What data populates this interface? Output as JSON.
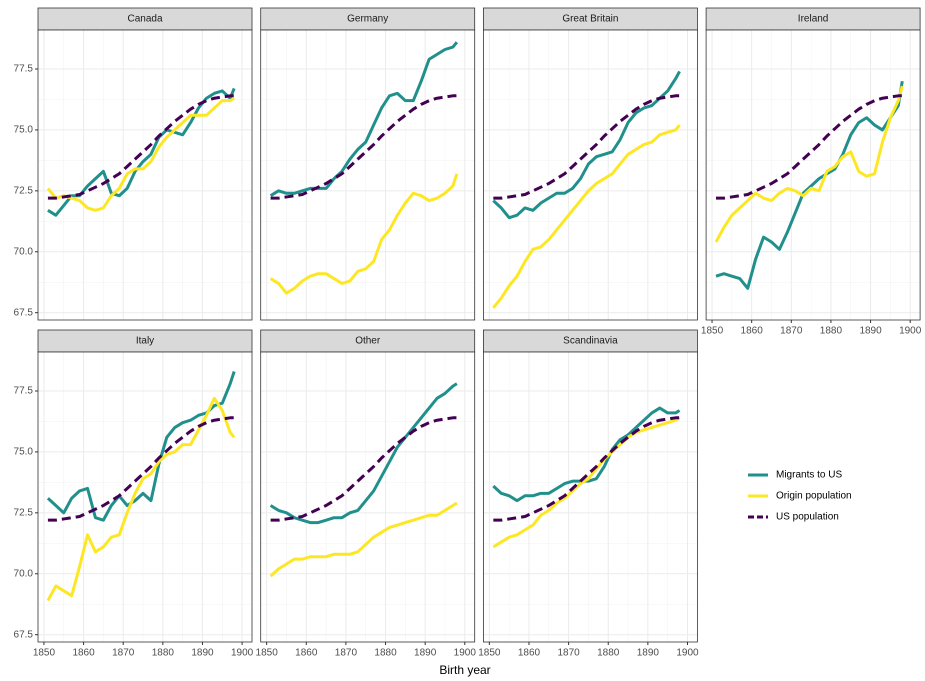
{
  "chart_data": [
    {
      "type": "line",
      "title": "Canada",
      "xlabel": "Birth year",
      "x": [
        1851,
        1853,
        1855,
        1857,
        1859,
        1861,
        1863,
        1865,
        1867,
        1869,
        1871,
        1873,
        1875,
        1877,
        1879,
        1881,
        1883,
        1885,
        1887,
        1889,
        1891,
        1893,
        1895,
        1897,
        1898
      ],
      "xlim": [
        1848.5,
        1902.5
      ],
      "xticks": [
        1850,
        1860,
        1870,
        1880,
        1890,
        1900
      ],
      "ylim": [
        67.2,
        79.1
      ],
      "yticks": [
        67.5,
        {
          "value": 70,
          "label": "70.0"
        },
        72.5,
        {
          "value": 75,
          "label": "75.0"
        },
        77.5
      ],
      "grid": true,
      "series": [
        {
          "name": "Migrants to US",
          "color": "#21908c",
          "dash": false,
          "values": [
            71.7,
            71.5,
            71.9,
            72.3,
            72.3,
            72.7,
            73.0,
            73.3,
            72.4,
            72.3,
            72.6,
            73.3,
            73.7,
            74.0,
            74.7,
            75.0,
            74.9,
            74.8,
            75.3,
            75.9,
            76.3,
            76.5,
            76.6,
            76.3,
            76.7
          ]
        },
        {
          "name": "Origin population",
          "color": "#fde725",
          "dash": false,
          "values": [
            72.6,
            72.2,
            72.3,
            72.2,
            72.1,
            71.8,
            71.7,
            71.8,
            72.3,
            72.6,
            73.2,
            73.4,
            73.4,
            73.7,
            74.3,
            74.7,
            75.0,
            75.3,
            75.6,
            75.6,
            75.6,
            75.9,
            76.2,
            76.2,
            76.3
          ]
        },
        {
          "name": "US population",
          "color": "#440154",
          "dash": true,
          "values": [
            72.2,
            72.2,
            72.25,
            72.3,
            72.35,
            72.5,
            72.65,
            72.8,
            73.0,
            73.2,
            73.5,
            73.8,
            74.1,
            74.4,
            74.75,
            75.05,
            75.35,
            75.6,
            75.85,
            76.05,
            76.2,
            76.3,
            76.35,
            76.4,
            76.4
          ]
        }
      ]
    },
    {
      "type": "line",
      "title": "Germany",
      "x": [
        1851,
        1853,
        1855,
        1857,
        1859,
        1861,
        1863,
        1865,
        1867,
        1869,
        1871,
        1873,
        1875,
        1877,
        1879,
        1881,
        1883,
        1885,
        1887,
        1889,
        1891,
        1893,
        1895,
        1897,
        1898
      ],
      "xlim": [
        1848.5,
        1902.5
      ],
      "xticks": [
        1850,
        1860,
        1870,
        1880,
        1890,
        1900
      ],
      "ylim": [
        67.2,
        79.1
      ],
      "yticks": [
        67.5,
        {
          "value": 70,
          "label": "70.0"
        },
        72.5,
        {
          "value": 75,
          "label": "75.0"
        },
        77.5
      ],
      "grid": true,
      "series": [
        {
          "name": "Migrants to US",
          "color": "#21908c",
          "dash": false,
          "values": [
            72.3,
            72.5,
            72.4,
            72.4,
            72.5,
            72.6,
            72.6,
            72.6,
            73.0,
            73.3,
            73.8,
            74.2,
            74.5,
            75.2,
            75.9,
            76.4,
            76.5,
            76.2,
            76.2,
            77.0,
            77.9,
            78.1,
            78.3,
            78.4,
            78.6
          ]
        },
        {
          "name": "Origin population",
          "color": "#fde725",
          "dash": false,
          "values": [
            68.9,
            68.7,
            68.3,
            68.5,
            68.8,
            69.0,
            69.1,
            69.1,
            68.9,
            68.7,
            68.8,
            69.2,
            69.3,
            69.6,
            70.5,
            70.9,
            71.5,
            72.0,
            72.4,
            72.3,
            72.1,
            72.2,
            72.4,
            72.7,
            73.2
          ]
        },
        {
          "name": "US population",
          "color": "#440154",
          "dash": true,
          "values": [
            72.2,
            72.2,
            72.25,
            72.3,
            72.35,
            72.5,
            72.65,
            72.8,
            73.0,
            73.2,
            73.5,
            73.8,
            74.1,
            74.4,
            74.75,
            75.05,
            75.35,
            75.6,
            75.85,
            76.05,
            76.2,
            76.3,
            76.35,
            76.4,
            76.4
          ]
        }
      ]
    },
    {
      "type": "line",
      "title": "Great Britain",
      "x": [
        1851,
        1853,
        1855,
        1857,
        1859,
        1861,
        1863,
        1865,
        1867,
        1869,
        1871,
        1873,
        1875,
        1877,
        1879,
        1881,
        1883,
        1885,
        1887,
        1889,
        1891,
        1893,
        1895,
        1897,
        1898
      ],
      "xlim": [
        1848.5,
        1902.5
      ],
      "xticks": [
        1850,
        1860,
        1870,
        1880,
        1890,
        1900
      ],
      "ylim": [
        67.2,
        79.1
      ],
      "yticks": [
        67.5,
        {
          "value": 70,
          "label": "70.0"
        },
        72.5,
        {
          "value": 75,
          "label": "75.0"
        },
        77.5
      ],
      "grid": true,
      "series": [
        {
          "name": "Migrants to US",
          "color": "#21908c",
          "dash": false,
          "values": [
            72.1,
            71.8,
            71.4,
            71.5,
            71.8,
            71.7,
            72.0,
            72.2,
            72.4,
            72.4,
            72.6,
            73.0,
            73.6,
            73.9,
            74.0,
            74.1,
            74.6,
            75.3,
            75.7,
            75.9,
            76.0,
            76.3,
            76.6,
            77.1,
            77.4
          ]
        },
        {
          "name": "Origin population",
          "color": "#fde725",
          "dash": false,
          "values": [
            67.7,
            68.1,
            68.6,
            69.0,
            69.6,
            70.1,
            70.2,
            70.5,
            70.9,
            71.3,
            71.7,
            72.1,
            72.5,
            72.8,
            73.0,
            73.2,
            73.6,
            74.0,
            74.2,
            74.4,
            74.5,
            74.8,
            74.9,
            75.0,
            75.2
          ]
        },
        {
          "name": "US population",
          "color": "#440154",
          "dash": true,
          "values": [
            72.2,
            72.2,
            72.25,
            72.3,
            72.35,
            72.5,
            72.65,
            72.8,
            73.0,
            73.2,
            73.5,
            73.8,
            74.1,
            74.4,
            74.75,
            75.05,
            75.35,
            75.6,
            75.85,
            76.05,
            76.2,
            76.3,
            76.35,
            76.4,
            76.4
          ]
        }
      ]
    },
    {
      "type": "line",
      "title": "Ireland",
      "x": [
        1851,
        1853,
        1855,
        1857,
        1859,
        1861,
        1863,
        1865,
        1867,
        1869,
        1871,
        1873,
        1875,
        1877,
        1879,
        1881,
        1883,
        1885,
        1887,
        1889,
        1891,
        1893,
        1895,
        1897,
        1898
      ],
      "xlim": [
        1848.5,
        1902.5
      ],
      "xticks": [
        1850,
        1860,
        1870,
        1880,
        1890,
        1900
      ],
      "ylim": [
        67.2,
        79.1
      ],
      "yticks": [
        67.5,
        {
          "value": 70,
          "label": "70.0"
        },
        72.5,
        {
          "value": 75,
          "label": "75.0"
        },
        77.5
      ],
      "grid": true,
      "series": [
        {
          "name": "Migrants to US",
          "color": "#21908c",
          "dash": false,
          "values": [
            69.0,
            69.1,
            69.0,
            68.9,
            68.5,
            69.7,
            70.6,
            70.4,
            70.1,
            70.8,
            71.6,
            72.4,
            72.7,
            73.0,
            73.2,
            73.4,
            74.0,
            74.8,
            75.3,
            75.5,
            75.2,
            75.0,
            75.5,
            76.0,
            77.0
          ]
        },
        {
          "name": "Origin population",
          "color": "#fde725",
          "dash": false,
          "values": [
            70.4,
            71.0,
            71.5,
            71.8,
            72.1,
            72.4,
            72.2,
            72.1,
            72.4,
            72.6,
            72.5,
            72.3,
            72.6,
            72.5,
            73.3,
            73.5,
            73.9,
            74.1,
            73.3,
            73.1,
            73.2,
            74.5,
            75.5,
            76.2,
            76.8
          ]
        },
        {
          "name": "US population",
          "color": "#440154",
          "dash": true,
          "values": [
            72.2,
            72.2,
            72.25,
            72.3,
            72.35,
            72.5,
            72.65,
            72.8,
            73.0,
            73.2,
            73.5,
            73.8,
            74.1,
            74.4,
            74.75,
            75.05,
            75.35,
            75.6,
            75.85,
            76.05,
            76.2,
            76.3,
            76.35,
            76.4,
            76.4
          ]
        }
      ]
    },
    {
      "type": "line",
      "title": "Italy",
      "x": [
        1851,
        1853,
        1855,
        1857,
        1859,
        1861,
        1863,
        1865,
        1867,
        1869,
        1871,
        1873,
        1875,
        1877,
        1879,
        1881,
        1883,
        1885,
        1887,
        1889,
        1891,
        1893,
        1895,
        1897,
        1898
      ],
      "xlim": [
        1848.5,
        1902.5
      ],
      "xticks": [
        1850,
        1860,
        1870,
        1880,
        1890,
        1900
      ],
      "ylim": [
        67.2,
        79.1
      ],
      "yticks": [
        67.5,
        {
          "value": 70,
          "label": "70.0"
        },
        72.5,
        {
          "value": 75,
          "label": "75.0"
        },
        77.5
      ],
      "grid": true,
      "series": [
        {
          "name": "Migrants to US",
          "color": "#21908c",
          "dash": false,
          "values": [
            73.1,
            72.8,
            72.5,
            73.1,
            73.4,
            73.5,
            72.3,
            72.2,
            72.8,
            73.2,
            72.8,
            73.0,
            73.3,
            73.0,
            74.5,
            75.6,
            76.0,
            76.2,
            76.3,
            76.5,
            76.6,
            76.9,
            77.0,
            77.8,
            78.3
          ]
        },
        {
          "name": "Origin population",
          "color": "#fde725",
          "dash": false,
          "values": [
            68.9,
            69.5,
            69.3,
            69.1,
            70.3,
            71.6,
            70.9,
            71.1,
            71.5,
            71.6,
            72.5,
            73.3,
            73.9,
            74.1,
            74.6,
            74.9,
            75.0,
            75.3,
            75.3,
            75.9,
            76.5,
            77.2,
            76.7,
            75.8,
            75.6
          ]
        },
        {
          "name": "US population",
          "color": "#440154",
          "dash": true,
          "values": [
            72.2,
            72.2,
            72.25,
            72.3,
            72.35,
            72.5,
            72.65,
            72.8,
            73.0,
            73.2,
            73.5,
            73.8,
            74.1,
            74.4,
            74.75,
            75.05,
            75.35,
            75.6,
            75.85,
            76.05,
            76.2,
            76.3,
            76.35,
            76.4,
            76.4
          ]
        }
      ]
    },
    {
      "type": "line",
      "title": "Other",
      "x": [
        1851,
        1853,
        1855,
        1857,
        1859,
        1861,
        1863,
        1865,
        1867,
        1869,
        1871,
        1873,
        1875,
        1877,
        1879,
        1881,
        1883,
        1885,
        1887,
        1889,
        1891,
        1893,
        1895,
        1897,
        1898
      ],
      "xlim": [
        1848.5,
        1902.5
      ],
      "xticks": [
        1850,
        1860,
        1870,
        1880,
        1890,
        1900
      ],
      "ylim": [
        67.2,
        79.1
      ],
      "yticks": [
        67.5,
        {
          "value": 70,
          "label": "70.0"
        },
        72.5,
        {
          "value": 75,
          "label": "75.0"
        },
        77.5
      ],
      "grid": true,
      "series": [
        {
          "name": "Migrants to US",
          "color": "#21908c",
          "dash": false,
          "values": [
            72.8,
            72.6,
            72.5,
            72.3,
            72.2,
            72.1,
            72.1,
            72.2,
            72.3,
            72.3,
            72.5,
            72.6,
            73.0,
            73.4,
            74.0,
            74.6,
            75.2,
            75.6,
            76.0,
            76.4,
            76.8,
            77.2,
            77.4,
            77.7,
            77.8
          ]
        },
        {
          "name": "Origin population",
          "color": "#fde725",
          "dash": false,
          "values": [
            69.9,
            70.2,
            70.4,
            70.6,
            70.6,
            70.7,
            70.7,
            70.7,
            70.8,
            70.8,
            70.8,
            70.9,
            71.2,
            71.5,
            71.7,
            71.9,
            72.0,
            72.1,
            72.2,
            72.3,
            72.4,
            72.4,
            72.6,
            72.8,
            72.9
          ]
        },
        {
          "name": "US population",
          "color": "#440154",
          "dash": true,
          "values": [
            72.2,
            72.2,
            72.25,
            72.3,
            72.35,
            72.5,
            72.65,
            72.8,
            73.0,
            73.2,
            73.5,
            73.8,
            74.1,
            74.4,
            74.75,
            75.05,
            75.35,
            75.6,
            75.85,
            76.05,
            76.2,
            76.3,
            76.35,
            76.4,
            76.4
          ]
        }
      ]
    },
    {
      "type": "line",
      "title": "Scandinavia",
      "x": [
        1851,
        1853,
        1855,
        1857,
        1859,
        1861,
        1863,
        1865,
        1867,
        1869,
        1871,
        1873,
        1875,
        1877,
        1879,
        1881,
        1883,
        1885,
        1887,
        1889,
        1891,
        1893,
        1895,
        1897,
        1898
      ],
      "xlim": [
        1848.5,
        1902.5
      ],
      "xticks": [
        1850,
        1860,
        1870,
        1880,
        1890,
        1900
      ],
      "ylim": [
        67.2,
        79.1
      ],
      "yticks": [
        67.5,
        {
          "value": 70,
          "label": "70.0"
        },
        72.5,
        {
          "value": 75,
          "label": "75.0"
        },
        77.5
      ],
      "grid": true,
      "series": [
        {
          "name": "Migrants to US",
          "color": "#21908c",
          "dash": false,
          "values": [
            73.6,
            73.3,
            73.2,
            73.0,
            73.2,
            73.2,
            73.3,
            73.3,
            73.5,
            73.7,
            73.8,
            73.8,
            73.8,
            73.9,
            74.4,
            75.1,
            75.5,
            75.7,
            76.0,
            76.3,
            76.6,
            76.8,
            76.6,
            76.6,
            76.7
          ]
        },
        {
          "name": "Origin population",
          "color": "#fde725",
          "dash": false,
          "values": [
            71.1,
            71.3,
            71.5,
            71.6,
            71.8,
            72.0,
            72.4,
            72.6,
            72.9,
            73.1,
            73.4,
            73.7,
            73.9,
            74.3,
            74.7,
            75.0,
            75.3,
            75.6,
            75.8,
            75.9,
            76.0,
            76.1,
            76.2,
            76.3,
            76.4
          ]
        },
        {
          "name": "US population",
          "color": "#440154",
          "dash": true,
          "values": [
            72.2,
            72.2,
            72.25,
            72.3,
            72.35,
            72.5,
            72.65,
            72.8,
            73.0,
            73.2,
            73.5,
            73.8,
            74.1,
            74.4,
            74.75,
            75.05,
            75.35,
            75.6,
            75.85,
            76.05,
            76.2,
            76.3,
            76.35,
            76.4,
            76.4
          ]
        }
      ]
    }
  ]
}
